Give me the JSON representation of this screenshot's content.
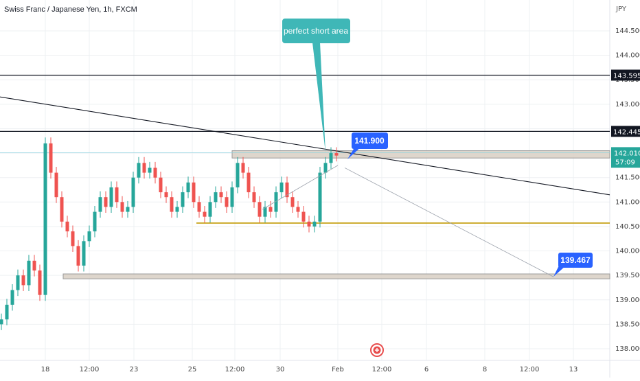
{
  "header": {
    "title": "Swiss Franc / Japanese Yen, 1h, FXCM",
    "currency": "JPY"
  },
  "chart_data": {
    "type": "candlestick",
    "ylim": [
      137.8,
      145.0
    ],
    "y_ticks": [
      "138.000",
      "138.500",
      "139.000",
      "139.500",
      "140.000",
      "140.500",
      "141.000",
      "141.500",
      "142.000",
      "142.500",
      "143.000",
      "143.500",
      "144.000",
      "144.500"
    ],
    "x_ticks": [
      "18",
      "12:00",
      "23",
      "25",
      "12:00",
      "30",
      "Feb",
      "12:00",
      "6",
      "8",
      "12:00",
      "13"
    ],
    "grid": true,
    "close_series": [
      138.6,
      138.9,
      139.2,
      139.5,
      139.3,
      139.8,
      139.6,
      139.1,
      142.2,
      141.6,
      141.1,
      140.6,
      140.4,
      140.1,
      139.7,
      140.2,
      140.4,
      140.8,
      141.1,
      140.9,
      141.3,
      141.0,
      140.8,
      140.9,
      141.5,
      141.8,
      141.6,
      141.7,
      141.5,
      141.2,
      141.1,
      140.8,
      140.9,
      141.2,
      141.4,
      141.0,
      140.8,
      140.7,
      141.0,
      141.2,
      141.1,
      140.9,
      141.3,
      141.8,
      141.6,
      141.2,
      141.0,
      140.7,
      140.9,
      140.8,
      141.2,
      141.4,
      141.1,
      140.9,
      140.8,
      140.6,
      140.5,
      140.6,
      141.6,
      141.8,
      142.0,
      141.95
    ],
    "levels": [
      {
        "value": 143.595,
        "label": "143.595"
      },
      {
        "value": 142.445,
        "label": "142.445"
      },
      {
        "value": 140.57
      }
    ],
    "zones": [
      {
        "low": 141.9,
        "high": 142.05
      },
      {
        "low": 139.43,
        "high": 139.53
      }
    ],
    "trendline": {
      "from": [
        0,
        143.15
      ],
      "to": [
        931,
        141.05
      ]
    },
    "last_price": {
      "value": "142.010",
      "countdown": "57:09"
    },
    "annotations": [
      {
        "text": "perfect short area"
      },
      {
        "text": "141.900"
      },
      {
        "text": "139.467"
      }
    ]
  }
}
